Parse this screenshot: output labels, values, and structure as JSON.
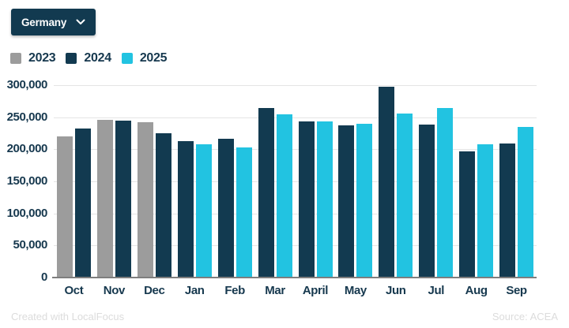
{
  "dropdown": {
    "label": "Germany"
  },
  "footer": {
    "left": "Created with LocalFocus",
    "right": "Source: ACEA"
  },
  "colors": {
    "accent_navy": "#123a50",
    "accent_cyan": "#22c3e1",
    "accent_gray": "#9c9c9c",
    "axis_text": "#16384e",
    "gridline": "#e5e5e5",
    "baseline": "#7e7e7e",
    "footer_text": "#dcdcdc"
  },
  "chart_data": {
    "type": "bar",
    "title": "",
    "xlabel": "",
    "ylabel": "",
    "categories": [
      "Oct",
      "Nov",
      "Dec",
      "Jan",
      "Feb",
      "Mar",
      "April",
      "May",
      "Jun",
      "Jul",
      "Aug",
      "Sep"
    ],
    "series": [
      {
        "name": "2023",
        "color": "#9c9c9c",
        "values": [
          220000,
          246000,
          242000,
          null,
          null,
          null,
          null,
          null,
          null,
          null,
          null,
          null
        ]
      },
      {
        "name": "2024",
        "color": "#123a50",
        "values": [
          232000,
          245000,
          225000,
          213000,
          217000,
          264000,
          243000,
          237000,
          297000,
          238000,
          197000,
          209000
        ]
      },
      {
        "name": "2025",
        "color": "#22c3e1",
        "values": [
          null,
          null,
          null,
          208000,
          203000,
          254000,
          243000,
          240000,
          256000,
          265000,
          208000,
          235000
        ]
      }
    ],
    "ylim": [
      0,
      300000
    ],
    "ytick_step": 50000,
    "grid": true,
    "legend_position": "top-left"
  }
}
